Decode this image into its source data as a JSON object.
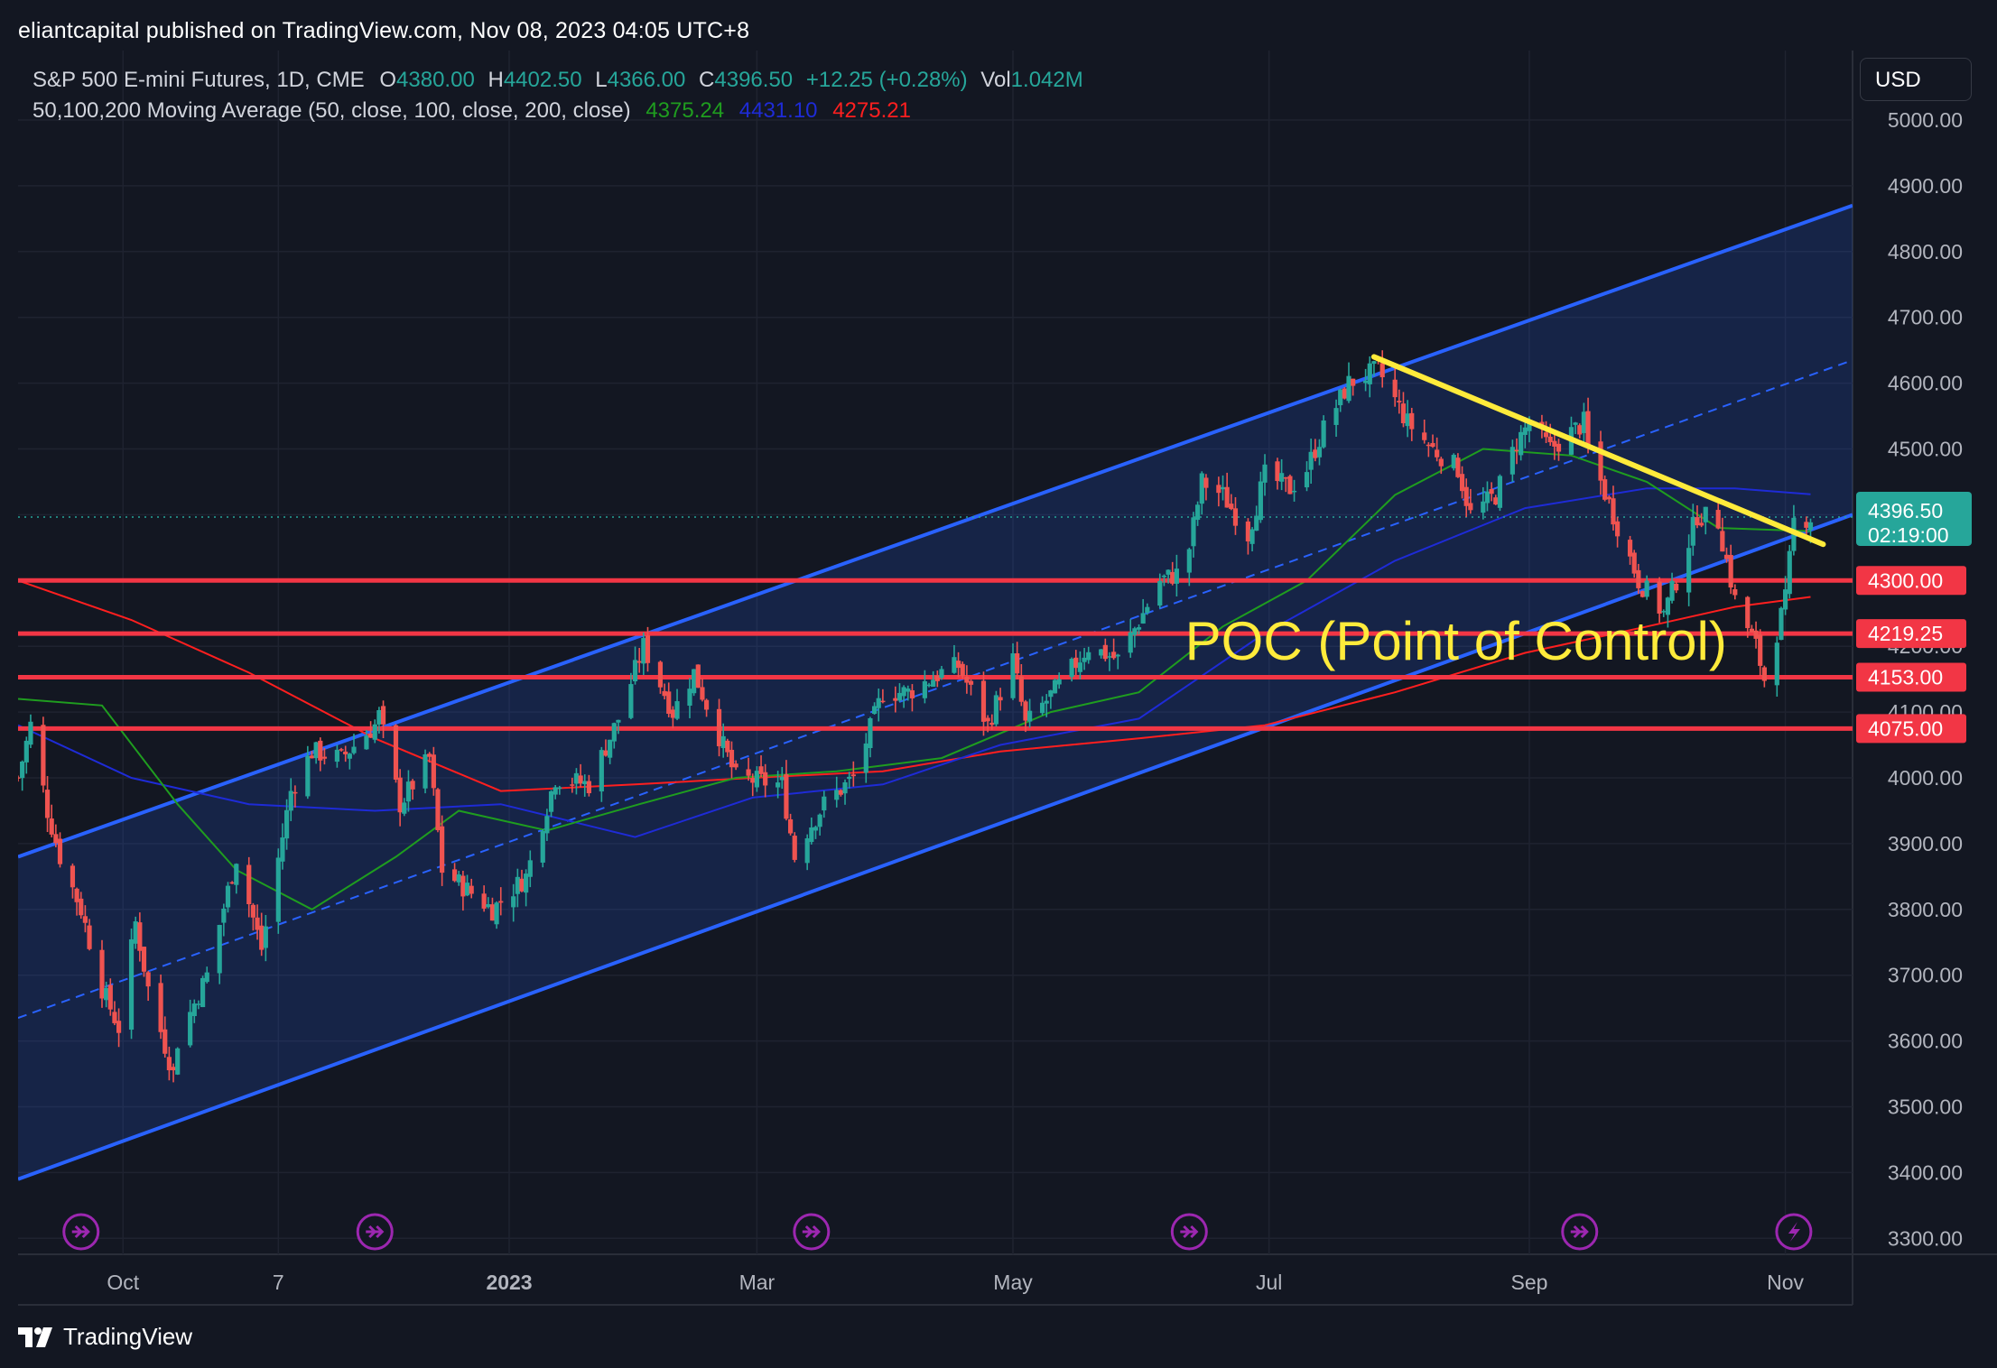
{
  "header": {
    "publisher_line": "eliantcapital published on TradingView.com, Nov 08, 2023 04:05 UTC+8"
  },
  "legend": {
    "symbol": "S&P 500 E-mini Futures, 1D, CME",
    "open_label": "O",
    "open": "4380.00",
    "high_label": "H",
    "high": "4402.50",
    "low_label": "L",
    "low": "4366.00",
    "close_label": "C",
    "close": "4396.50",
    "change": "+12.25 (+0.28%)",
    "vol_label": "Vol",
    "vol": "1.042M",
    "ma_label": "50,100,200 Moving Average (50, close, 100, close, 200, close)",
    "ma50": "4375.24",
    "ma100": "4431.10",
    "ma200": "4275.21"
  },
  "currency": "USD",
  "footer": {
    "brand": "TradingView"
  },
  "colors": {
    "background": "#131722",
    "up": "#26a69a",
    "down": "#ef5350",
    "channel": "#2962ff",
    "hline": "#f23645",
    "trendline": "#ffeb3b",
    "ma50": "#1f9d1f",
    "ma100": "#1e2bd6",
    "ma200": "#ff1f1f",
    "price_tag": "#26a69a"
  },
  "chart_data": {
    "type": "candlestick",
    "title": "S&P 500 E-mini Futures, 1D, CME",
    "y_axis": {
      "min": 3250,
      "max": 5080,
      "ticks": [
        "5000.00",
        "4900.00",
        "4800.00",
        "4700.00",
        "4600.00",
        "4500.00",
        "4400.00",
        "4300.00",
        "4200.00",
        "4100.00",
        "4000.00",
        "3900.00",
        "3800.00",
        "3700.00",
        "3600.00",
        "3500.00",
        "3400.00",
        "3300.00"
      ]
    },
    "x_axis": {
      "start": "2022-09-06",
      "end": "2023-11-17",
      "ticks": [
        {
          "date": "2022-10-01",
          "label": "Oct",
          "bold": false
        },
        {
          "date": "2022-11-07",
          "label": "7",
          "bold": false
        },
        {
          "date": "2023-01-01",
          "label": "2023",
          "bold": true
        },
        {
          "date": "2023-03-01",
          "label": "Mar",
          "bold": false
        },
        {
          "date": "2023-05-01",
          "label": "May",
          "bold": false
        },
        {
          "date": "2023-07-01",
          "label": "Jul",
          "bold": false
        },
        {
          "date": "2023-09-01",
          "label": "Sep",
          "bold": false
        },
        {
          "date": "2023-11-01",
          "label": "Nov",
          "bold": false
        }
      ]
    },
    "price_path": [
      [
        "2022-09-06",
        4000
      ],
      [
        "2022-09-09",
        4080
      ],
      [
        "2022-09-13",
        3950
      ],
      [
        "2022-09-16",
        3880
      ],
      [
        "2022-09-21",
        3800
      ],
      [
        "2022-09-26",
        3680
      ],
      [
        "2022-09-30",
        3620
      ],
      [
        "2022-10-04",
        3780
      ],
      [
        "2022-10-07",
        3680
      ],
      [
        "2022-10-13",
        3550
      ],
      [
        "2022-10-14",
        3600
      ],
      [
        "2022-10-21",
        3700
      ],
      [
        "2022-10-28",
        3880
      ],
      [
        "2022-11-03",
        3740
      ],
      [
        "2022-11-10",
        3980
      ],
      [
        "2022-11-15",
        4040
      ],
      [
        "2022-11-22",
        4030
      ],
      [
        "2022-11-30",
        4080
      ],
      [
        "2022-12-01",
        4095
      ],
      [
        "2022-12-06",
        3960
      ],
      [
        "2022-12-13",
        4030
      ],
      [
        "2022-12-16",
        3860
      ],
      [
        "2022-12-22",
        3830
      ],
      [
        "2022-12-28",
        3800
      ],
      [
        "2023-01-05",
        3850
      ],
      [
        "2023-01-12",
        4000
      ],
      [
        "2023-01-20",
        3990
      ],
      [
        "2023-01-27",
        4090
      ],
      [
        "2023-02-02",
        4200
      ],
      [
        "2023-02-09",
        4100
      ],
      [
        "2023-02-14",
        4160
      ],
      [
        "2023-02-24",
        4000
      ],
      [
        "2023-03-07",
        3990
      ],
      [
        "2023-03-10",
        3880
      ],
      [
        "2023-03-13",
        3920
      ],
      [
        "2023-03-17",
        3960
      ],
      [
        "2023-03-24",
        4000
      ],
      [
        "2023-03-31",
        4130
      ],
      [
        "2023-04-06",
        4130
      ],
      [
        "2023-04-14",
        4160
      ],
      [
        "2023-04-18",
        4170
      ],
      [
        "2023-04-25",
        4080
      ],
      [
        "2023-05-01",
        4180
      ],
      [
        "2023-05-04",
        4080
      ],
      [
        "2023-05-12",
        4140
      ],
      [
        "2023-05-19",
        4200
      ],
      [
        "2023-05-26",
        4180
      ],
      [
        "2023-06-01",
        4250
      ],
      [
        "2023-06-05",
        4300
      ],
      [
        "2023-06-09",
        4310
      ],
      [
        "2023-06-12",
        4350
      ],
      [
        "2023-06-15",
        4450
      ],
      [
        "2023-06-20",
        4430
      ],
      [
        "2023-06-26",
        4370
      ],
      [
        "2023-06-30",
        4460
      ],
      [
        "2023-07-06",
        4440
      ],
      [
        "2023-07-10",
        4470
      ],
      [
        "2023-07-14",
        4530
      ],
      [
        "2023-07-20",
        4600
      ],
      [
        "2023-07-27",
        4620
      ],
      [
        "2023-08-03",
        4540
      ],
      [
        "2023-08-09",
        4500
      ],
      [
        "2023-08-15",
        4470
      ],
      [
        "2023-08-18",
        4400
      ],
      [
        "2023-08-24",
        4430
      ],
      [
        "2023-08-29",
        4510
      ],
      [
        "2023-09-01",
        4540
      ],
      [
        "2023-09-06",
        4500
      ],
      [
        "2023-09-14",
        4540
      ],
      [
        "2023-09-15",
        4500
      ],
      [
        "2023-09-21",
        4400
      ],
      [
        "2023-09-27",
        4300
      ],
      [
        "2023-10-03",
        4250
      ],
      [
        "2023-10-06",
        4300
      ],
      [
        "2023-10-11",
        4400
      ],
      [
        "2023-10-16",
        4390
      ],
      [
        "2023-10-20",
        4270
      ],
      [
        "2023-10-25",
        4200
      ],
      [
        "2023-10-27",
        4150
      ],
      [
        "2023-11-01",
        4270
      ],
      [
        "2023-11-03",
        4390
      ],
      [
        "2023-11-07",
        4396.5
      ]
    ],
    "ma50": [
      [
        "2022-09-06",
        4120
      ],
      [
        "2022-09-26",
        4110
      ],
      [
        "2022-10-14",
        3960
      ],
      [
        "2022-10-28",
        3860
      ],
      [
        "2022-11-15",
        3800
      ],
      [
        "2022-12-05",
        3880
      ],
      [
        "2022-12-20",
        3950
      ],
      [
        "2023-01-10",
        3920
      ],
      [
        "2023-02-01",
        3960
      ],
      [
        "2023-02-24",
        4000
      ],
      [
        "2023-03-20",
        4010
      ],
      [
        "2023-04-14",
        4030
      ],
      [
        "2023-05-10",
        4100
      ],
      [
        "2023-05-31",
        4130
      ],
      [
        "2023-06-20",
        4230
      ],
      [
        "2023-07-10",
        4300
      ],
      [
        "2023-07-31",
        4430
      ],
      [
        "2023-08-21",
        4500
      ],
      [
        "2023-09-11",
        4490
      ],
      [
        "2023-09-29",
        4450
      ],
      [
        "2023-10-16",
        4380
      ],
      [
        "2023-11-07",
        4375
      ]
    ],
    "ma100": [
      [
        "2022-09-06",
        4080
      ],
      [
        "2022-10-03",
        4000
      ],
      [
        "2022-10-31",
        3960
      ],
      [
        "2022-11-30",
        3950
      ],
      [
        "2022-12-30",
        3960
      ],
      [
        "2023-01-31",
        3910
      ],
      [
        "2023-02-28",
        3970
      ],
      [
        "2023-03-31",
        3990
      ],
      [
        "2023-04-28",
        4050
      ],
      [
        "2023-05-31",
        4090
      ],
      [
        "2023-06-30",
        4220
      ],
      [
        "2023-07-31",
        4330
      ],
      [
        "2023-08-31",
        4410
      ],
      [
        "2023-09-29",
        4440
      ],
      [
        "2023-10-20",
        4440
      ],
      [
        "2023-11-07",
        4431
      ]
    ],
    "ma200": [
      [
        "2022-09-06",
        4300
      ],
      [
        "2022-10-03",
        4240
      ],
      [
        "2022-10-31",
        4160
      ],
      [
        "2022-11-30",
        4060
      ],
      [
        "2022-12-30",
        3980
      ],
      [
        "2023-01-31",
        3990
      ],
      [
        "2023-02-28",
        4000
      ],
      [
        "2023-03-31",
        4010
      ],
      [
        "2023-04-28",
        4040
      ],
      [
        "2023-05-31",
        4060
      ],
      [
        "2023-06-30",
        4080
      ],
      [
        "2023-07-31",
        4130
      ],
      [
        "2023-08-31",
        4190
      ],
      [
        "2023-09-29",
        4230
      ],
      [
        "2023-10-20",
        4260
      ],
      [
        "2023-11-07",
        4275
      ]
    ],
    "horizontal_levels": [
      {
        "price": 4300,
        "label": "4300.00"
      },
      {
        "price": 4219.25,
        "label": "4219.25"
      },
      {
        "price": 4153,
        "label": "4153.00"
      },
      {
        "price": 4075,
        "label": "4075.00"
      }
    ],
    "channel": {
      "upper": [
        [
          "2022-09-06",
          3880
        ],
        [
          "2023-11-17",
          4870
        ]
      ],
      "lower": [
        [
          "2022-09-06",
          3390
        ],
        [
          "2023-11-17",
          4400
        ]
      ],
      "median": [
        [
          "2022-09-06",
          3635
        ],
        [
          "2023-11-17",
          4635
        ]
      ]
    },
    "trendline": [
      [
        "2023-07-26",
        4640
      ],
      [
        "2023-11-10",
        4355
      ]
    ],
    "annotation": {
      "text": "POC (Point of Control)",
      "price": 4210,
      "date": "2023-06-11"
    },
    "last_price": {
      "value": 4396.5,
      "label": "4396.50",
      "countdown": "02:19:00"
    },
    "event_markers": [
      "2022-09-21",
      "2022-11-30",
      "2023-03-14",
      "2023-06-12",
      "2023-09-13",
      "2023-11-03"
    ]
  }
}
